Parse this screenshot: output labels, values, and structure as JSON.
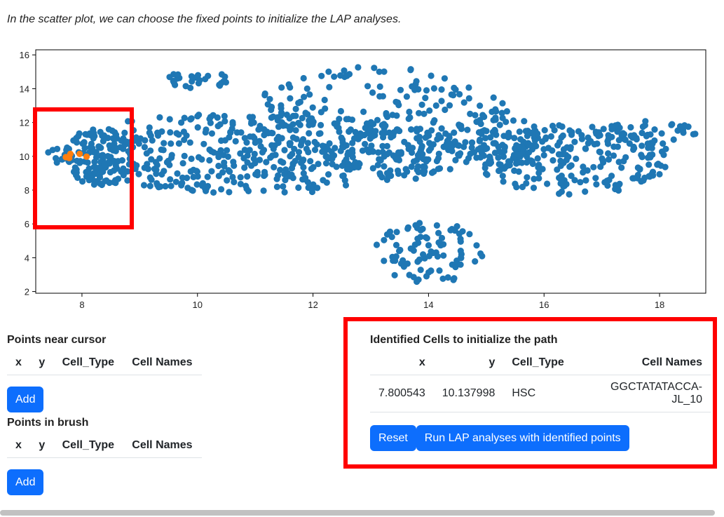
{
  "intro_text": "In the scatter plot, we can choose the fixed points to initialize the LAP analyses.",
  "chart_data": {
    "type": "scatter",
    "title": "",
    "xlabel": "",
    "ylabel": "",
    "xlim": [
      7.2,
      18.8
    ],
    "ylim": [
      1.9,
      16.3
    ],
    "xticks": [
      8,
      10,
      12,
      14,
      16,
      18
    ],
    "yticks": [
      2,
      4,
      6,
      8,
      10,
      12,
      14,
      16
    ],
    "colors": {
      "cells": "#1f77b4",
      "selected": "#ff7f0e"
    },
    "selected_points": [
      {
        "x": 7.8,
        "y": 10.14
      },
      {
        "x": 7.72,
        "y": 9.95
      },
      {
        "x": 7.96,
        "y": 10.14
      },
      {
        "x": 8.08,
        "y": 9.98
      },
      {
        "x": 7.78,
        "y": 9.9
      }
    ],
    "regions": [
      {
        "cx": 11.0,
        "cy": 10.2,
        "rx": 3.6,
        "ry": 2.4,
        "n": 470
      },
      {
        "cx": 13.1,
        "cy": 12.0,
        "rx": 2.4,
        "ry": 3.3,
        "n": 240
      },
      {
        "cx": 14.0,
        "cy": 4.3,
        "rx": 1.0,
        "ry": 1.8,
        "n": 90
      },
      {
        "cx": 16.5,
        "cy": 9.8,
        "rx": 1.7,
        "ry": 2.1,
        "n": 210
      },
      {
        "cx": 17.8,
        "cy": 11.4,
        "rx": 0.9,
        "ry": 0.7,
        "n": 40
      },
      {
        "cx": 8.3,
        "cy": 10.0,
        "rx": 0.6,
        "ry": 1.7,
        "n": 90
      },
      {
        "cx": 10.0,
        "cy": 14.5,
        "rx": 0.6,
        "ry": 0.5,
        "n": 25
      },
      {
        "cx": 15.2,
        "cy": 10.8,
        "rx": 0.9,
        "ry": 1.5,
        "n": 90
      }
    ]
  },
  "near_cursor": {
    "title": "Points near cursor",
    "headers": [
      "x",
      "y",
      "Cell_Type",
      "Cell Names"
    ],
    "add_label": "Add"
  },
  "in_brush": {
    "title": "Points in brush",
    "headers": [
      "x",
      "y",
      "Cell_Type",
      "Cell Names"
    ],
    "add_label": "Add"
  },
  "identified": {
    "title": "Identified Cells to initialize the path",
    "headers": [
      "x",
      "y",
      "Cell_Type",
      "Cell Names"
    ],
    "rows": [
      [
        "7.800543",
        "10.137998",
        "HSC",
        "GGCTATATACCA-JL_10"
      ]
    ],
    "reset_label": "Reset",
    "run_label": "Run LAP analyses with identified points"
  }
}
